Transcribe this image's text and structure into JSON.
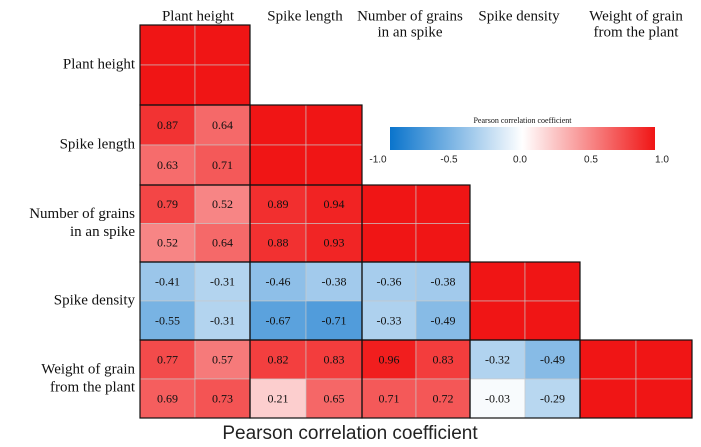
{
  "chart_data": {
    "type": "heatmap",
    "title": "Pearson correlation coefficient",
    "row_labels": [
      [
        "Plant height"
      ],
      [
        "Spike length"
      ],
      [
        "Number of grains",
        "in an spike"
      ],
      [
        "Spike density"
      ],
      [
        "Weight of grain",
        "from the plant"
      ]
    ],
    "col_labels": [
      [
        "Plant height"
      ],
      [
        "Spike length"
      ],
      [
        "Number of grains",
        "in an spike"
      ],
      [
        "Spike density"
      ],
      [
        "Weight of grain",
        "from the plant"
      ]
    ],
    "z": [
      [
        1,
        1
      ],
      [
        1,
        1
      ],
      [
        0.87,
        0.64,
        1,
        1
      ],
      [
        0.63,
        0.71,
        1,
        1
      ],
      [
        0.79,
        0.52,
        0.89,
        0.94,
        1,
        1
      ],
      [
        0.52,
        0.64,
        0.88,
        0.93,
        1,
        1
      ],
      [
        -0.41,
        -0.31,
        -0.46,
        -0.38,
        -0.36,
        -0.38,
        1,
        1
      ],
      [
        -0.55,
        -0.31,
        -0.67,
        -0.71,
        -0.33,
        -0.49,
        1,
        1
      ],
      [
        0.77,
        0.57,
        0.82,
        0.83,
        0.96,
        0.83,
        -0.32,
        -0.49,
        1,
        1
      ],
      [
        0.69,
        0.73,
        0.21,
        0.65,
        0.71,
        0.72,
        -0.03,
        -0.29,
        1,
        1
      ]
    ],
    "colorbar": {
      "title": "Pearson correlation coefficient",
      "lim": [
        -1,
        1
      ],
      "ticks": [
        {
          "value": -1,
          "label": "-1.0"
        },
        -0.5,
        {
          "value": 0,
          "label": "0.0"
        },
        0.5,
        {
          "value": 1,
          "label": "1.0"
        }
      ],
      "colors": [
        "#0a74cc",
        "#ffffff",
        "#f01515"
      ]
    }
  }
}
